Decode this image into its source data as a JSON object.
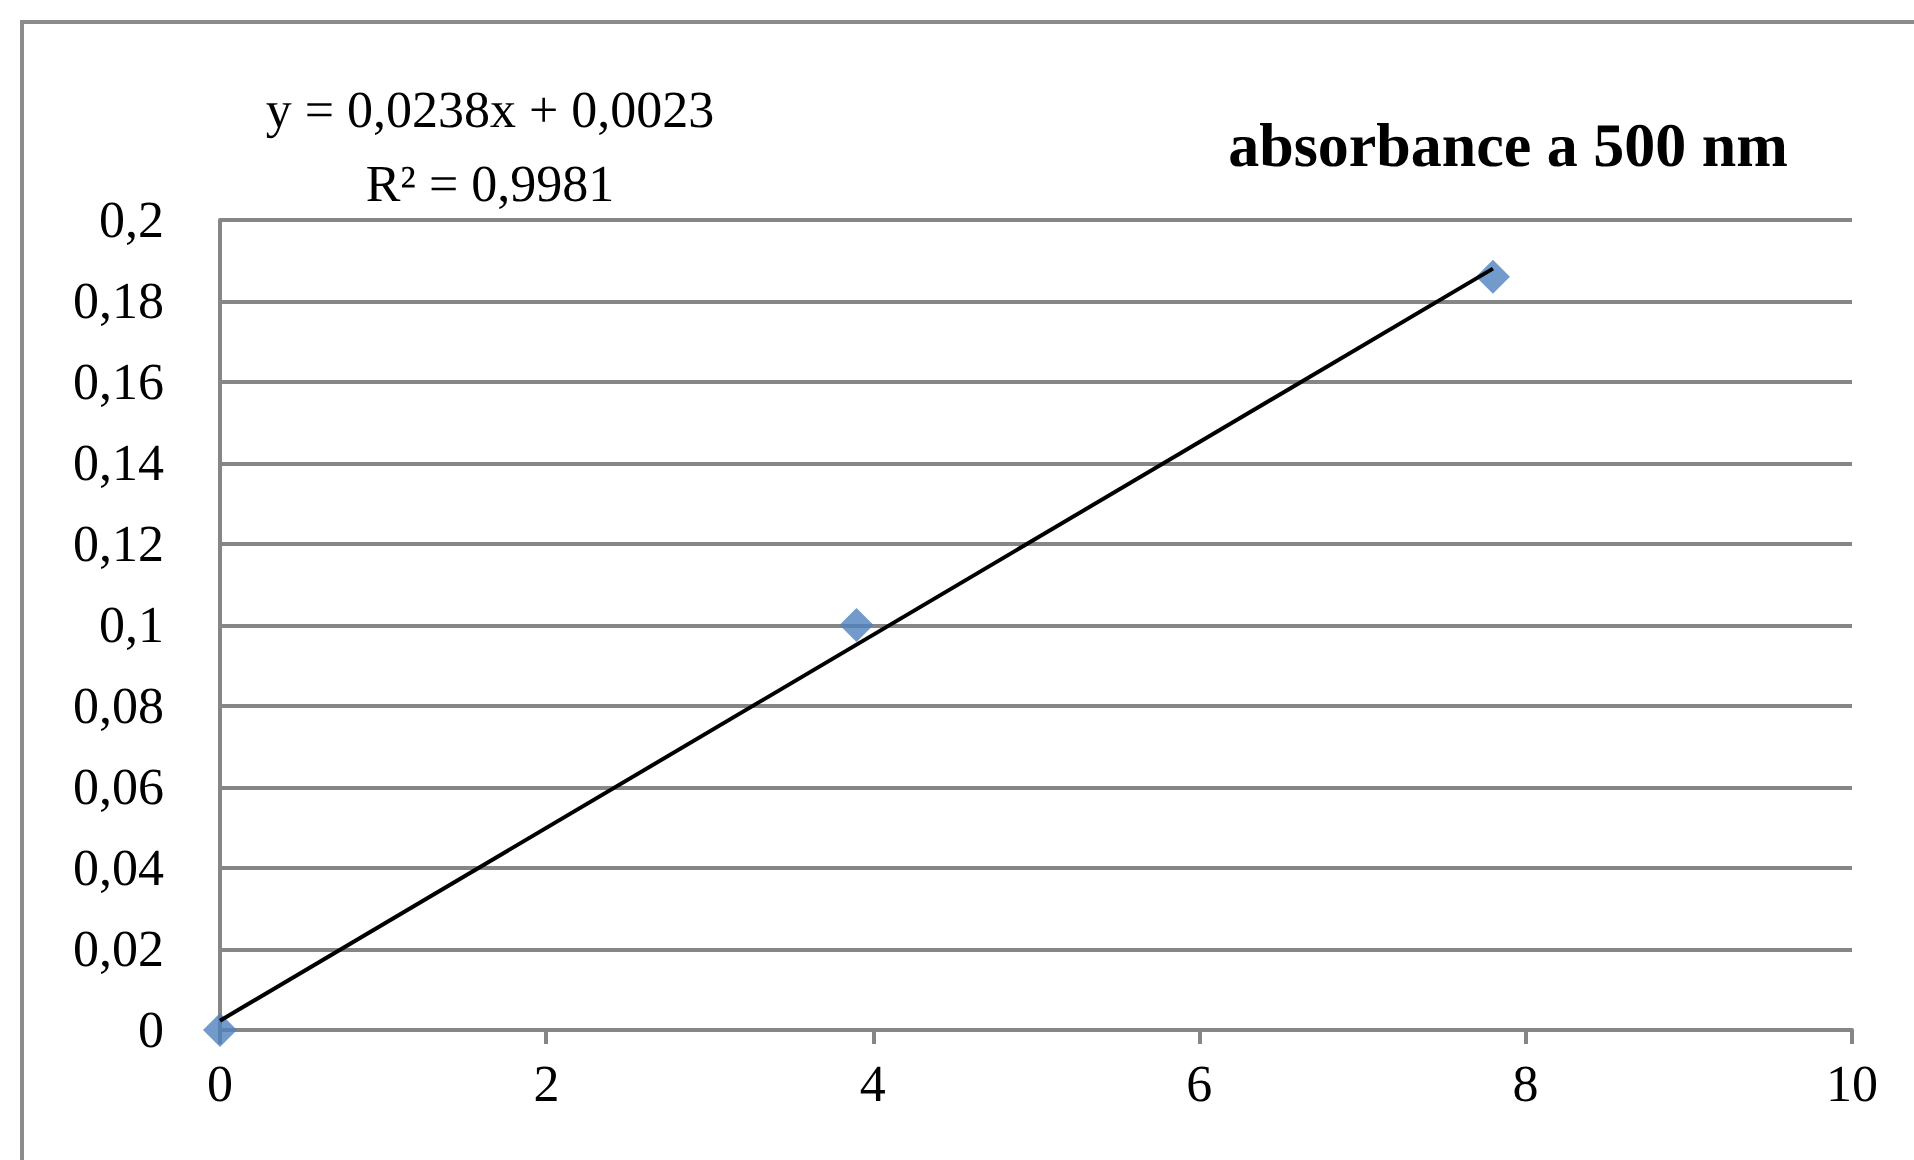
{
  "chart_data": {
    "type": "scatter",
    "title": "absorbance a 500 nm",
    "annotations": [
      "y = 0,0238x + 0,0023",
      "R² = 0,9981"
    ],
    "series": [
      {
        "type": "scatter",
        "x": [
          0,
          3.9,
          7.8
        ],
        "values": [
          0,
          0.1,
          0.186
        ],
        "color": "#4f81bd",
        "marker": "diamond"
      },
      {
        "type": "line",
        "x": [
          0,
          7.8
        ],
        "values": [
          0.0023,
          0.188
        ],
        "color": "#000000",
        "marker": "none",
        "line_style": "solid"
      }
    ],
    "xlim": [
      0,
      10
    ],
    "xticks": [
      0,
      2,
      4,
      6,
      8,
      10
    ],
    "ylim": [
      0,
      0.2
    ],
    "yticks": [
      0,
      {
        "value": 0.02,
        "label": "0,02"
      },
      {
        "value": 0.04,
        "label": "0,04"
      },
      {
        "value": 0.06,
        "label": "0,06"
      },
      {
        "value": 0.08,
        "label": "0,08"
      },
      {
        "value": 0.1,
        "label": "0,1"
      },
      {
        "value": 0.12,
        "label": "0,12"
      },
      {
        "value": 0.14,
        "label": "0,14"
      },
      {
        "value": 0.16,
        "label": "0,16"
      },
      {
        "value": 0.18,
        "label": "0,18"
      },
      {
        "value": 0.2,
        "label": "0,2"
      }
    ],
    "grid": "y"
  }
}
